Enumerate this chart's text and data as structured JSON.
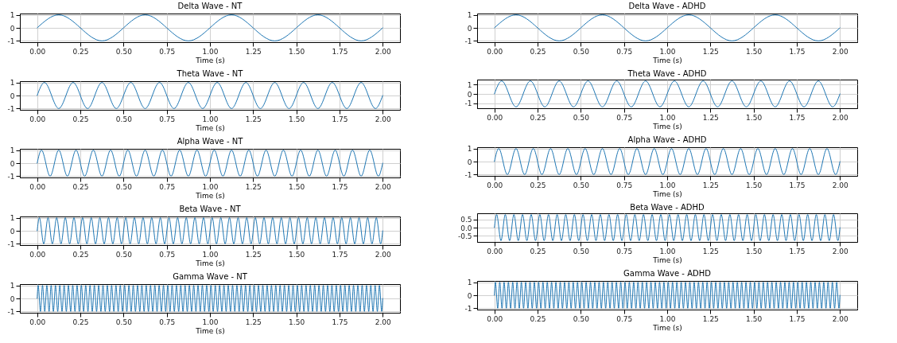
{
  "chart_data": [
    {
      "type": "line",
      "title": "Delta Wave - NT",
      "xlabel": "Time (s)",
      "grid": true,
      "xlim": [
        -0.1,
        2.1
      ],
      "ylim": [
        -1.1,
        1.1
      ],
      "yticks": [
        -1,
        0,
        1
      ],
      "xticks": [
        {
          "value": 0,
          "label": "0.00"
        },
        0.25,
        {
          "value": 0.5,
          "label": "0.50"
        },
        0.75,
        {
          "value": 1,
          "label": "1.00"
        },
        1.25,
        {
          "value": 1.5,
          "label": "1.50"
        },
        1.75,
        {
          "value": 2,
          "label": "2.00"
        }
      ],
      "x": [
        0,
        0.125,
        0.375,
        0.625,
        0.875,
        1.125,
        1.375,
        1.625,
        1.875,
        2
      ],
      "series": [
        {
          "color": "#1f77b4",
          "values": [
            0,
            1,
            -1,
            1,
            -1,
            1,
            -1,
            1,
            -1,
            0
          ]
        }
      ]
    },
    {
      "type": "line",
      "title": "Delta Wave - ADHD",
      "xlabel": "Time (s)",
      "grid": true,
      "xlim": [
        -0.1,
        2.1
      ],
      "ylim": [
        -1.1,
        1.1
      ],
      "yticks": [
        -1,
        0,
        1
      ],
      "xticks": [
        {
          "value": 0,
          "label": "0.00"
        },
        0.25,
        {
          "value": 0.5,
          "label": "0.50"
        },
        0.75,
        {
          "value": 1,
          "label": "1.00"
        },
        1.25,
        {
          "value": 1.5,
          "label": "1.50"
        },
        1.75,
        {
          "value": 2,
          "label": "2.00"
        }
      ],
      "x": [
        0,
        0.125,
        0.375,
        0.625,
        0.875,
        1.125,
        1.375,
        1.625,
        1.875,
        2
      ],
      "series": [
        {
          "color": "#1f77b4",
          "values": [
            0,
            1,
            -1,
            1,
            -1,
            1,
            -1,
            1,
            -1,
            0
          ]
        }
      ]
    },
    {
      "type": "line",
      "title": "Theta Wave - NT",
      "xlabel": "Time (s)",
      "grid": true,
      "xlim": [
        -0.1,
        2.1
      ],
      "ylim": [
        -1.1,
        1.1
      ],
      "yticks": [
        -1,
        0,
        1
      ],
      "xticks": [
        {
          "value": 0,
          "label": "0.00"
        },
        0.25,
        {
          "value": 0.5,
          "label": "0.50"
        },
        0.75,
        {
          "value": 1,
          "label": "1.00"
        },
        1.25,
        {
          "value": 1.5,
          "label": "1.50"
        },
        1.75,
        {
          "value": 2,
          "label": "2.00"
        }
      ],
      "x": [
        0,
        0.042,
        0.125,
        0.208,
        0.292,
        0.375,
        0.458,
        0.542,
        0.625,
        0.708,
        0.792,
        0.875,
        0.958,
        1.042,
        1.125,
        1.208,
        1.292,
        1.375,
        1.458,
        1.542,
        1.625,
        1.708,
        1.792,
        1.875,
        1.958,
        2
      ],
      "series": [
        {
          "color": "#1f77b4",
          "values": [
            0,
            1,
            -1,
            1,
            -1,
            1,
            -1,
            1,
            -1,
            1,
            -1,
            1,
            -1,
            1,
            -1,
            1,
            -1,
            1,
            -1,
            1,
            -1,
            1,
            -1,
            1,
            -1,
            0
          ]
        }
      ]
    },
    {
      "type": "line",
      "title": "Theta Wave - ADHD",
      "xlabel": "Time (s)",
      "grid": true,
      "xlim": [
        -0.1,
        2.1
      ],
      "ylim": [
        -1.55,
        1.55
      ],
      "yticks": [
        -1,
        0,
        1
      ],
      "xticks": [
        {
          "value": 0,
          "label": "0.00"
        },
        0.25,
        {
          "value": 0.5,
          "label": "0.50"
        },
        0.75,
        {
          "value": 1,
          "label": "1.00"
        },
        1.25,
        {
          "value": 1.5,
          "label": "1.50"
        },
        1.75,
        {
          "value": 2,
          "label": "2.00"
        }
      ],
      "x": [
        0,
        0.042,
        0.125,
        0.208,
        0.292,
        0.375,
        0.458,
        0.542,
        0.625,
        0.708,
        0.792,
        0.875,
        0.958,
        1.042,
        1.125,
        1.208,
        1.292,
        1.375,
        1.458,
        1.542,
        1.625,
        1.708,
        1.792,
        1.875,
        1.958,
        2
      ],
      "series": [
        {
          "color": "#1f77b4",
          "values": [
            0,
            1.4,
            -1.4,
            1.4,
            -1.4,
            1.4,
            -1.4,
            1.4,
            -1.4,
            1.4,
            -1.4,
            1.4,
            -1.4,
            1.4,
            -1.4,
            1.4,
            -1.4,
            1.4,
            -1.4,
            1.4,
            -1.4,
            1.4,
            -1.4,
            1.4,
            -1.4,
            0
          ]
        }
      ]
    },
    {
      "type": "line",
      "title": "Alpha Wave - NT",
      "xlabel": "Time (s)",
      "grid": true,
      "xlim": [
        -0.1,
        2.1
      ],
      "ylim": [
        -1.1,
        1.1
      ],
      "yticks": [
        -1,
        0,
        1
      ],
      "xticks": [
        {
          "value": 0,
          "label": "0.00"
        },
        0.25,
        {
          "value": 0.5,
          "label": "0.50"
        },
        0.75,
        {
          "value": 1,
          "label": "1.00"
        },
        1.25,
        {
          "value": 1.5,
          "label": "1.50"
        },
        1.75,
        {
          "value": 2,
          "label": "2.00"
        }
      ],
      "x": [
        0,
        0.025,
        0.075,
        0.125,
        0.175,
        0.225,
        0.275,
        0.325,
        0.375,
        0.425,
        0.475,
        0.525,
        0.575,
        0.625,
        0.675,
        0.725,
        0.775,
        0.825,
        0.875,
        0.925,
        0.975,
        1.025,
        1.075,
        1.125,
        1.175,
        1.225,
        1.275,
        1.325,
        1.375,
        1.425,
        1.475,
        1.525,
        1.575,
        1.625,
        1.675,
        1.725,
        1.775,
        1.825,
        1.875,
        1.925,
        1.975,
        2
      ],
      "series": [
        {
          "color": "#1f77b4",
          "values": [
            0,
            1,
            -1,
            1,
            -1,
            1,
            -1,
            1,
            -1,
            1,
            -1,
            1,
            -1,
            1,
            -1,
            1,
            -1,
            1,
            -1,
            1,
            -1,
            1,
            -1,
            1,
            -1,
            1,
            -1,
            1,
            -1,
            1,
            -1,
            1,
            -1,
            1,
            -1,
            1,
            -1,
            1,
            -1,
            1,
            -1,
            0
          ]
        }
      ]
    },
    {
      "type": "line",
      "title": "Alpha Wave - ADHD",
      "xlabel": "Time (s)",
      "grid": true,
      "xlim": [
        -0.1,
        2.1
      ],
      "ylim": [
        -1.1,
        1.1
      ],
      "yticks": [
        -1,
        0,
        1
      ],
      "xticks": [
        {
          "value": 0,
          "label": "0.00"
        },
        0.25,
        {
          "value": 0.5,
          "label": "0.50"
        },
        0.75,
        {
          "value": 1,
          "label": "1.00"
        },
        1.25,
        {
          "value": 1.5,
          "label": "1.50"
        },
        1.75,
        {
          "value": 2,
          "label": "2.00"
        }
      ],
      "x": [
        0,
        0.025,
        0.075,
        0.125,
        0.175,
        0.225,
        0.275,
        0.325,
        0.375,
        0.425,
        0.475,
        0.525,
        0.575,
        0.625,
        0.675,
        0.725,
        0.775,
        0.825,
        0.875,
        0.925,
        0.975,
        1.025,
        1.075,
        1.125,
        1.175,
        1.225,
        1.275,
        1.325,
        1.375,
        1.425,
        1.475,
        1.525,
        1.575,
        1.625,
        1.675,
        1.725,
        1.775,
        1.825,
        1.875,
        1.925,
        1.975,
        2
      ],
      "series": [
        {
          "color": "#1f77b4",
          "values": [
            0,
            1,
            -1,
            1,
            -1,
            1,
            -1,
            1,
            -1,
            1,
            -1,
            1,
            -1,
            1,
            -1,
            1,
            -1,
            1,
            -1,
            1,
            -1,
            1,
            -1,
            1,
            -1,
            1,
            -1,
            1,
            -1,
            1,
            -1,
            1,
            -1,
            1,
            -1,
            1,
            -1,
            1,
            -1,
            1,
            -1,
            0
          ]
        }
      ]
    },
    {
      "type": "line",
      "title": "Beta Wave - NT",
      "xlabel": "Time (s)",
      "grid": true,
      "xlim": [
        -0.1,
        2.1
      ],
      "ylim": [
        -1.1,
        1.1
      ],
      "yticks": [
        -1,
        0,
        1
      ],
      "xticks": [
        {
          "value": 0,
          "label": "0.00"
        },
        0.25,
        {
          "value": 0.5,
          "label": "0.50"
        },
        0.75,
        {
          "value": 1,
          "label": "1.00"
        },
        1.25,
        {
          "value": 1.5,
          "label": "1.50"
        },
        1.75,
        {
          "value": 2,
          "label": "2.00"
        }
      ],
      "x": [
        0,
        0.013,
        0.038,
        0.063,
        0.088,
        0.113,
        0.138,
        0.163,
        0.188,
        0.213,
        0.238,
        0.263,
        0.288,
        0.313,
        0.338,
        0.363,
        0.388,
        0.413,
        0.438,
        0.463,
        0.488,
        0.513,
        0.538,
        0.563,
        0.588,
        0.613,
        0.638,
        0.663,
        0.688,
        0.713,
        0.738,
        0.763,
        0.788,
        0.813,
        0.838,
        0.863,
        0.888,
        0.913,
        0.938,
        0.963,
        0.988,
        1.013,
        1.038,
        1.063,
        1.088,
        1.113,
        1.138,
        1.163,
        1.188,
        1.213,
        1.238,
        1.263,
        1.288,
        1.313,
        1.338,
        1.363,
        1.388,
        1.413,
        1.438,
        1.463,
        1.488,
        1.513,
        1.538,
        1.563,
        1.588,
        1.613,
        1.638,
        1.663,
        1.688,
        1.713,
        1.738,
        1.763,
        1.788,
        1.813,
        1.838,
        1.863,
        1.888,
        1.913,
        1.938,
        1.963,
        1.988,
        2
      ],
      "series": [
        {
          "color": "#1f77b4",
          "values": [
            0,
            1,
            -1,
            1,
            -1,
            1,
            -1,
            1,
            -1,
            1,
            -1,
            1,
            -1,
            1,
            -1,
            1,
            -1,
            1,
            -1,
            1,
            -1,
            1,
            -1,
            1,
            -1,
            1,
            -1,
            1,
            -1,
            1,
            -1,
            1,
            -1,
            1,
            -1,
            1,
            -1,
            1,
            -1,
            1,
            -1,
            1,
            -1,
            1,
            -1,
            1,
            -1,
            1,
            -1,
            1,
            -1,
            1,
            -1,
            1,
            -1,
            1,
            -1,
            1,
            -1,
            1,
            -1,
            1,
            -1,
            1,
            -1,
            1,
            -1,
            1,
            -1,
            1,
            -1,
            1,
            -1,
            1,
            -1,
            1,
            -1,
            1,
            -1,
            1,
            -1,
            0
          ]
        }
      ]
    },
    {
      "type": "line",
      "title": "Beta Wave - ADHD",
      "xlabel": "Time (s)",
      "grid": true,
      "xlim": [
        -0.1,
        2.1
      ],
      "ylim": [
        -0.88,
        0.88
      ],
      "yticks": [
        -0.5,
        {
          "value": 0,
          "label": "0.0"
        },
        0.5
      ],
      "xticks": [
        {
          "value": 0,
          "label": "0.00"
        },
        0.25,
        {
          "value": 0.5,
          "label": "0.50"
        },
        0.75,
        {
          "value": 1,
          "label": "1.00"
        },
        1.25,
        {
          "value": 1.5,
          "label": "1.50"
        },
        1.75,
        {
          "value": 2,
          "label": "2.00"
        }
      ],
      "x": [
        0,
        0.013,
        0.038,
        0.063,
        0.088,
        0.113,
        0.138,
        0.163,
        0.188,
        0.213,
        0.238,
        0.263,
        0.288,
        0.313,
        0.338,
        0.363,
        0.388,
        0.413,
        0.438,
        0.463,
        0.488,
        0.513,
        0.538,
        0.563,
        0.588,
        0.613,
        0.638,
        0.663,
        0.688,
        0.713,
        0.738,
        0.763,
        0.788,
        0.813,
        0.838,
        0.863,
        0.888,
        0.913,
        0.938,
        0.963,
        0.988,
        1.013,
        1.038,
        1.063,
        1.088,
        1.113,
        1.138,
        1.163,
        1.188,
        1.213,
        1.238,
        1.263,
        1.288,
        1.313,
        1.338,
        1.363,
        1.388,
        1.413,
        1.438,
        1.463,
        1.488,
        1.513,
        1.538,
        1.563,
        1.588,
        1.613,
        1.638,
        1.663,
        1.688,
        1.713,
        1.738,
        1.763,
        1.788,
        1.813,
        1.838,
        1.863,
        1.888,
        1.913,
        1.938,
        1.963,
        1.988,
        2
      ],
      "series": [
        {
          "color": "#1f77b4",
          "values": [
            0,
            0.8,
            -0.8,
            0.8,
            -0.8,
            0.8,
            -0.8,
            0.8,
            -0.8,
            0.8,
            -0.8,
            0.8,
            -0.8,
            0.8,
            -0.8,
            0.8,
            -0.8,
            0.8,
            -0.8,
            0.8,
            -0.8,
            0.8,
            -0.8,
            0.8,
            -0.8,
            0.8,
            -0.8,
            0.8,
            -0.8,
            0.8,
            -0.8,
            0.8,
            -0.8,
            0.8,
            -0.8,
            0.8,
            -0.8,
            0.8,
            -0.8,
            0.8,
            -0.8,
            0.8,
            -0.8,
            0.8,
            -0.8,
            0.8,
            -0.8,
            0.8,
            -0.8,
            0.8,
            -0.8,
            0.8,
            -0.8,
            0.8,
            -0.8,
            0.8,
            -0.8,
            0.8,
            -0.8,
            0.8,
            -0.8,
            0.8,
            -0.8,
            0.8,
            -0.8,
            0.8,
            -0.8,
            0.8,
            -0.8,
            0.8,
            -0.8,
            0.8,
            -0.8,
            0.8,
            -0.8,
            0.8,
            -0.8,
            0.8,
            -0.8,
            0.8,
            -0.8,
            0
          ]
        }
      ]
    },
    {
      "type": "line",
      "title": "Gamma Wave - NT",
      "xlabel": "Time (s)",
      "grid": true,
      "xlim": [
        -0.1,
        2.1
      ],
      "ylim": [
        -1.1,
        1.1
      ],
      "yticks": [
        -1,
        0,
        1
      ],
      "xticks": [
        {
          "value": 0,
          "label": "0.00"
        },
        0.25,
        {
          "value": 0.5,
          "label": "0.50"
        },
        0.75,
        {
          "value": 1,
          "label": "1.00"
        },
        1.25,
        {
          "value": 1.5,
          "label": "1.50"
        },
        1.75,
        {
          "value": 2,
          "label": "2.00"
        }
      ],
      "x": [
        0,
        0.006,
        0.019,
        0.031,
        0.044,
        0.056,
        0.069,
        0.081,
        0.094,
        0.106,
        0.119,
        0.131,
        0.144,
        0.156,
        0.169,
        0.181,
        0.194,
        0.206,
        0.219,
        0.231,
        0.244,
        0.256,
        0.269,
        0.281,
        0.294,
        0.306,
        0.319,
        0.331,
        0.344,
        0.356,
        0.369,
        0.381,
        0.394,
        0.406,
        0.419,
        0.431,
        0.444,
        0.456,
        0.469,
        0.481,
        0.494,
        0.506,
        0.519,
        0.531,
        0.544,
        0.556,
        0.569,
        0.581,
        0.594,
        0.606,
        0.619,
        0.631,
        0.644,
        0.656,
        0.669,
        0.681,
        0.694,
        0.706,
        0.719,
        0.731,
        0.744,
        0.756,
        0.769,
        0.781,
        0.794,
        0.806,
        0.819,
        0.831,
        0.844,
        0.856,
        0.869,
        0.881,
        0.894,
        0.906,
        0.919,
        0.931,
        0.944,
        0.956,
        0.969,
        0.981,
        0.994,
        1.006,
        1.019,
        1.031,
        1.044,
        1.056,
        1.069,
        1.081,
        1.094,
        1.106,
        1.119,
        1.131,
        1.144,
        1.156,
        1.169,
        1.181,
        1.194,
        1.206,
        1.219,
        1.231,
        1.244,
        1.256,
        1.269,
        1.281,
        1.294,
        1.306,
        1.319,
        1.331,
        1.344,
        1.356,
        1.369,
        1.381,
        1.394,
        1.406,
        1.419,
        1.431,
        1.444,
        1.456,
        1.469,
        1.481,
        1.494,
        1.506,
        1.519,
        1.531,
        1.544,
        1.556,
        1.569,
        1.581,
        1.594,
        1.606,
        1.619,
        1.631,
        1.644,
        1.656,
        1.669,
        1.681,
        1.694,
        1.706,
        1.719,
        1.731,
        1.744,
        1.756,
        1.769,
        1.781,
        1.794,
        1.806,
        1.819,
        1.831,
        1.844,
        1.856,
        1.869,
        1.881,
        1.894,
        1.906,
        1.919,
        1.931,
        1.944,
        1.956,
        1.969,
        1.981,
        1.994,
        2
      ],
      "series": [
        {
          "color": "#1f77b4",
          "values": [
            0,
            1,
            -1,
            1,
            -1,
            1,
            -1,
            1,
            -1,
            1,
            -1,
            1,
            -1,
            1,
            -1,
            1,
            -1,
            1,
            -1,
            1,
            -1,
            1,
            -1,
            1,
            -1,
            1,
            -1,
            1,
            -1,
            1,
            -1,
            1,
            -1,
            1,
            -1,
            1,
            -1,
            1,
            -1,
            1,
            -1,
            1,
            -1,
            1,
            -1,
            1,
            -1,
            1,
            -1,
            1,
            -1,
            1,
            -1,
            1,
            -1,
            1,
            -1,
            1,
            -1,
            1,
            -1,
            1,
            -1,
            1,
            -1,
            1,
            -1,
            1,
            -1,
            1,
            -1,
            1,
            -1,
            1,
            -1,
            1,
            -1,
            1,
            -1,
            1,
            -1,
            1,
            -1,
            1,
            -1,
            1,
            -1,
            1,
            -1,
            1,
            -1,
            1,
            -1,
            1,
            -1,
            1,
            -1,
            1,
            -1,
            1,
            -1,
            1,
            -1,
            1,
            -1,
            1,
            -1,
            1,
            -1,
            1,
            -1,
            1,
            -1,
            1,
            -1,
            1,
            -1,
            1,
            -1,
            1,
            -1,
            1,
            -1,
            1,
            -1,
            1,
            -1,
            1,
            -1,
            1,
            -1,
            1,
            -1,
            1,
            -1,
            1,
            -1,
            1,
            -1,
            1,
            -1,
            1,
            -1,
            1,
            -1,
            1,
            -1,
            1,
            -1,
            1,
            -1,
            1,
            -1,
            1,
            -1,
            1,
            -1,
            1,
            -1,
            1,
            -1,
            0
          ]
        }
      ]
    },
    {
      "type": "line",
      "title": "Gamma Wave - ADHD",
      "xlabel": "Time (s)",
      "grid": true,
      "xlim": [
        -0.1,
        2.1
      ],
      "ylim": [
        -1.1,
        1.1
      ],
      "yticks": [
        -1,
        0,
        1
      ],
      "xticks": [
        {
          "value": 0,
          "label": "0.00"
        },
        0.25,
        {
          "value": 0.5,
          "label": "0.50"
        },
        0.75,
        {
          "value": 1,
          "label": "1.00"
        },
        1.25,
        {
          "value": 1.5,
          "label": "1.50"
        },
        1.75,
        {
          "value": 2,
          "label": "2.00"
        }
      ],
      "x": [
        0,
        0.006,
        0.019,
        0.031,
        0.044,
        0.056,
        0.069,
        0.081,
        0.094,
        0.106,
        0.119,
        0.131,
        0.144,
        0.156,
        0.169,
        0.181,
        0.194,
        0.206,
        0.219,
        0.231,
        0.244,
        0.256,
        0.269,
        0.281,
        0.294,
        0.306,
        0.319,
        0.331,
        0.344,
        0.356,
        0.369,
        0.381,
        0.394,
        0.406,
        0.419,
        0.431,
        0.444,
        0.456,
        0.469,
        0.481,
        0.494,
        0.506,
        0.519,
        0.531,
        0.544,
        0.556,
        0.569,
        0.581,
        0.594,
        0.606,
        0.619,
        0.631,
        0.644,
        0.656,
        0.669,
        0.681,
        0.694,
        0.706,
        0.719,
        0.731,
        0.744,
        0.756,
        0.769,
        0.781,
        0.794,
        0.806,
        0.819,
        0.831,
        0.844,
        0.856,
        0.869,
        0.881,
        0.894,
        0.906,
        0.919,
        0.931,
        0.944,
        0.956,
        0.969,
        0.981,
        0.994,
        1.006,
        1.019,
        1.031,
        1.044,
        1.056,
        1.069,
        1.081,
        1.094,
        1.106,
        1.119,
        1.131,
        1.144,
        1.156,
        1.169,
        1.181,
        1.194,
        1.206,
        1.219,
        1.231,
        1.244,
        1.256,
        1.269,
        1.281,
        1.294,
        1.306,
        1.319,
        1.331,
        1.344,
        1.356,
        1.369,
        1.381,
        1.394,
        1.406,
        1.419,
        1.431,
        1.444,
        1.456,
        1.469,
        1.481,
        1.494,
        1.506,
        1.519,
        1.531,
        1.544,
        1.556,
        1.569,
        1.581,
        1.594,
        1.606,
        1.619,
        1.631,
        1.644,
        1.656,
        1.669,
        1.681,
        1.694,
        1.706,
        1.719,
        1.731,
        1.744,
        1.756,
        1.769,
        1.781,
        1.794,
        1.806,
        1.819,
        1.831,
        1.844,
        1.856,
        1.869,
        1.881,
        1.894,
        1.906,
        1.919,
        1.931,
        1.944,
        1.956,
        1.969,
        1.981,
        1.994,
        2
      ],
      "series": [
        {
          "color": "#1f77b4",
          "values": [
            0,
            1,
            -1,
            1,
            -1,
            1,
            -1,
            1,
            -1,
            1,
            -1,
            1,
            -1,
            1,
            -1,
            1,
            -1,
            1,
            -1,
            1,
            -1,
            1,
            -1,
            1,
            -1,
            1,
            -1,
            1,
            -1,
            1,
            -1,
            1,
            -1,
            1,
            -1,
            1,
            -1,
            1,
            -1,
            1,
            -1,
            1,
            -1,
            1,
            -1,
            1,
            -1,
            1,
            -1,
            1,
            -1,
            1,
            -1,
            1,
            -1,
            1,
            -1,
            1,
            -1,
            1,
            -1,
            1,
            -1,
            1,
            -1,
            1,
            -1,
            1,
            -1,
            1,
            -1,
            1,
            -1,
            1,
            -1,
            1,
            -1,
            1,
            -1,
            1,
            -1,
            1,
            -1,
            1,
            -1,
            1,
            -1,
            1,
            -1,
            1,
            -1,
            1,
            -1,
            1,
            -1,
            1,
            -1,
            1,
            -1,
            1,
            -1,
            1,
            -1,
            1,
            -1,
            1,
            -1,
            1,
            -1,
            1,
            -1,
            1,
            -1,
            1,
            -1,
            1,
            -1,
            1,
            -1,
            1,
            -1,
            1,
            -1,
            1,
            -1,
            1,
            -1,
            1,
            -1,
            1,
            -1,
            1,
            -1,
            1,
            -1,
            1,
            -1,
            1,
            -1,
            1,
            -1,
            1,
            -1,
            1,
            -1,
            1,
            -1,
            1,
            -1,
            1,
            -1,
            1,
            -1,
            1,
            -1,
            1,
            -1,
            1,
            -1,
            1,
            -1,
            0
          ]
        }
      ]
    }
  ]
}
